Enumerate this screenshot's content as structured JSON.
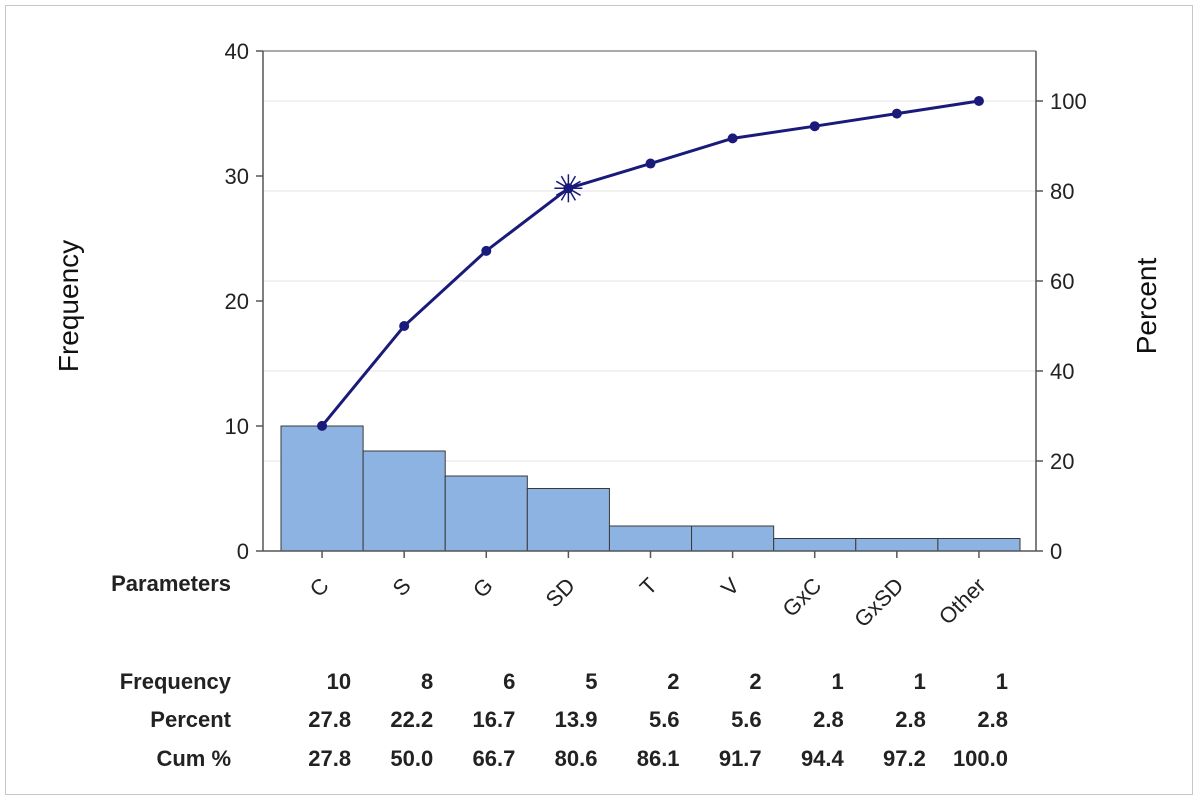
{
  "chart_data": {
    "type": "bar",
    "title": "",
    "categories_label": "Parameters",
    "categories": [
      "C",
      "S",
      "G",
      "SD",
      "T",
      "V",
      "GxC",
      "GxSD",
      "Other"
    ],
    "series": [
      {
        "name": "Frequency",
        "values": [
          10,
          8,
          6,
          5,
          2,
          2,
          1,
          1,
          1
        ]
      },
      {
        "name": "Cum %",
        "values": [
          27.8,
          50.0,
          66.7,
          80.6,
          86.1,
          91.7,
          94.4,
          97.2,
          100.0
        ]
      }
    ],
    "ylabel": "Frequency",
    "ylabel_right": "Percent",
    "ylim": [
      0,
      40
    ],
    "yticks": [
      0,
      10,
      20,
      30,
      40
    ],
    "ylim_right": [
      0,
      100
    ],
    "yticks_right": [
      0,
      20,
      40,
      60,
      80,
      100
    ],
    "grid": true,
    "highlight_category": "SD",
    "bar_color": "#8db3e2",
    "line_color": "#1a1a7a",
    "table": {
      "rows": [
        {
          "label": "Frequency",
          "values": [
            "10",
            "8",
            "6",
            "5",
            "2",
            "2",
            "1",
            "1",
            "1"
          ]
        },
        {
          "label": "Percent",
          "values": [
            "27.8",
            "22.2",
            "16.7",
            "13.9",
            "5.6",
            "5.6",
            "2.8",
            "2.8",
            "2.8"
          ]
        },
        {
          "label": "Cum %",
          "values": [
            "27.8",
            "50.0",
            "66.7",
            "80.6",
            "86.1",
            "91.7",
            "94.4",
            "97.2",
            "100.0"
          ]
        }
      ]
    }
  }
}
